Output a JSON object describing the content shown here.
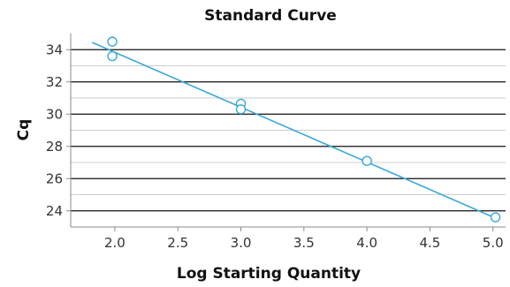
{
  "chart_data": {
    "type": "scatter",
    "title": "Standard Curve",
    "xlabel": "Log Starting Quantity",
    "ylabel": "Cq",
    "xlim": [
      1.65,
      5.1
    ],
    "ylim": [
      23.0,
      35.0
    ],
    "x_ticks": [
      "2.0",
      "2.5",
      "3.0",
      "3.5",
      "4.0",
      "4.5",
      "5.0"
    ],
    "y_ticks": [
      "24",
      "26",
      "28",
      "30",
      "32",
      "34"
    ],
    "grid": "horizontal",
    "points": [
      {
        "x": 1.98,
        "y": 34.5
      },
      {
        "x": 1.98,
        "y": 33.6
      },
      {
        "x": 3.0,
        "y": 30.65
      },
      {
        "x": 3.0,
        "y": 30.3
      },
      {
        "x": 4.0,
        "y": 27.1
      },
      {
        "x": 5.02,
        "y": 23.6
      }
    ],
    "fit_line": {
      "x": [
        1.82,
        5.02
      ],
      "y": [
        34.45,
        23.55
      ]
    },
    "colors": {
      "series": "#3aa8d8",
      "grid_major": "#111111",
      "grid_minor": "#bdbdbd",
      "axis": "#888888"
    }
  }
}
